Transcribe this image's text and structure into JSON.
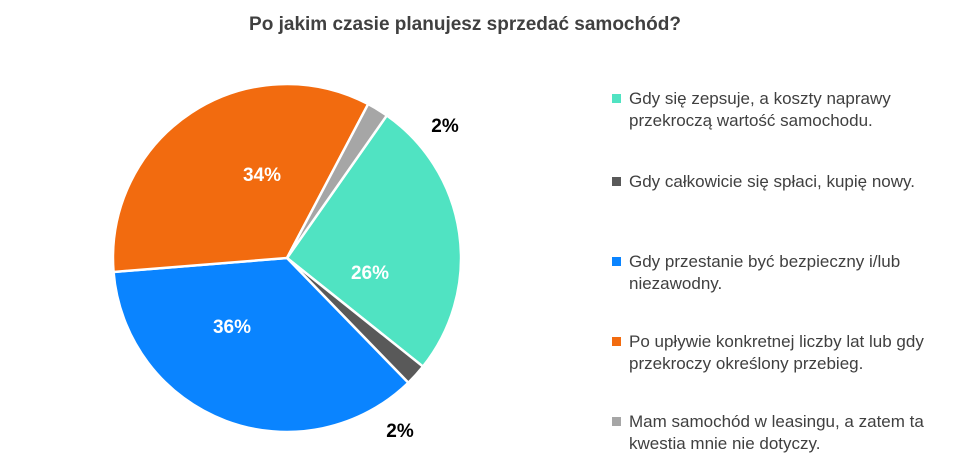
{
  "chart_data": {
    "type": "pie",
    "title": "Po jakim czasie planujesz sprzedać samochód?",
    "legend_position": "right",
    "slices": [
      {
        "name": "Gdy się zepsuje, a koszty naprawy przekroczą wartość samochodu.",
        "value": 26,
        "label": "26%",
        "color": "#50E3C2",
        "label_color": "#ffffff"
      },
      {
        "name": "Gdy całkowicie się spłaci, kupię nowy.",
        "value": 2,
        "label": "2%",
        "color": "#595959",
        "label_color": "#000000"
      },
      {
        "name": "Gdy przestanie być bezpieczny i/lub niezawodny.",
        "value": 36,
        "label": "36%",
        "color": "#0A84FF",
        "label_color": "#ffffff"
      },
      {
        "name": "Po upływie konkretnej liczby lat lub gdy przekroczy określony przebieg.",
        "value": 34,
        "label": "34%",
        "color": "#F26B0F",
        "label_color": "#ffffff"
      },
      {
        "name": "Mam samochód w leasingu, a zatem ta kwestia mnie nie dotyczy.",
        "value": 2,
        "label": "2%",
        "color": "#A6A6A6",
        "label_color": "#000000"
      }
    ]
  }
}
